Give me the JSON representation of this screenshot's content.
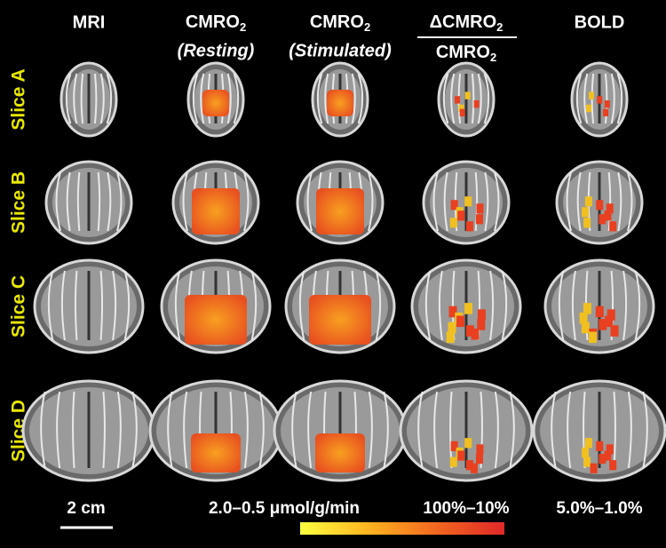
{
  "columns": [
    {
      "label": "MRI"
    },
    {
      "label": "CMRO",
      "sub": "2",
      "note": "(Resting)"
    },
    {
      "label": "CMRO",
      "sub": "2",
      "note": "(Stimulated)"
    },
    {
      "numerator": {
        "label": "ΔCMRO",
        "sub": "2"
      },
      "denominator": {
        "label": "CMRO",
        "sub": "2"
      }
    },
    {
      "label": "BOLD"
    }
  ],
  "rows": [
    "Slice A",
    "Slice B",
    "Slice C",
    "Slice D"
  ],
  "scale_bar": "2 cm",
  "ranges": [
    "2.0–0.5 μmol/g/min",
    "100%–10%",
    "5.0%–1.0%"
  ]
}
